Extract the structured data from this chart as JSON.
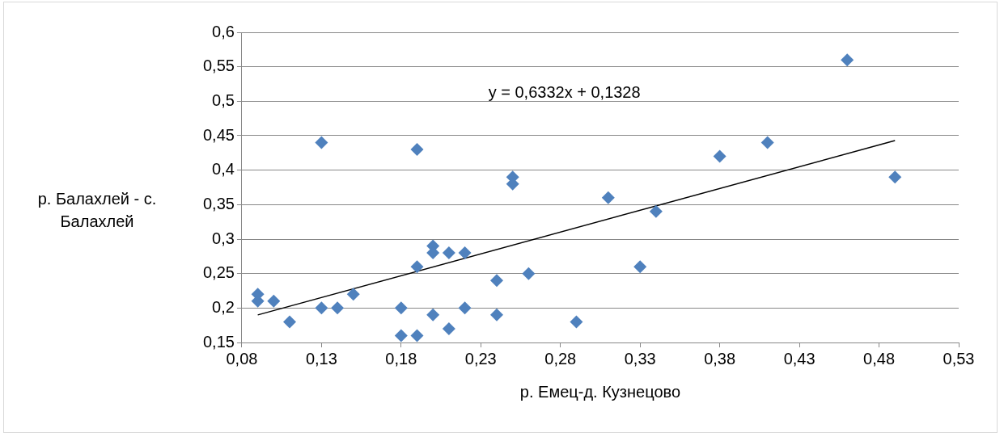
{
  "chart_data": {
    "type": "scatter",
    "xlabel": "р. Емец-д. Кузнецово",
    "ylabel": "р. Балахлей - с. Балахлей",
    "annotations": [
      "y = 0,6332x + 0,1328"
    ],
    "xlim": [
      0.08,
      0.53
    ],
    "xticks": [
      {
        "value": 0.08,
        "label": "0,08"
      },
      {
        "value": 0.13,
        "label": "0,13"
      },
      {
        "value": 0.18,
        "label": "0,18"
      },
      {
        "value": 0.23,
        "label": "0,23"
      },
      {
        "value": 0.28,
        "label": "0,28"
      },
      {
        "value": 0.33,
        "label": "0,33"
      },
      {
        "value": 0.38,
        "label": "0,38"
      },
      {
        "value": 0.43,
        "label": "0,43"
      },
      {
        "value": 0.48,
        "label": "0,48"
      },
      {
        "value": 0.53,
        "label": "0,53"
      }
    ],
    "ylim": [
      0.15,
      0.6
    ],
    "yticks": [
      {
        "value": 0.15,
        "label": "0,15"
      },
      {
        "value": 0.2,
        "label": "0,2"
      },
      {
        "value": 0.25,
        "label": "0,25"
      },
      {
        "value": 0.3,
        "label": "0,3"
      },
      {
        "value": 0.35,
        "label": "0,35"
      },
      {
        "value": 0.4,
        "label": "0,4"
      },
      {
        "value": 0.45,
        "label": "0,45"
      },
      {
        "value": 0.5,
        "label": "0,5"
      },
      {
        "value": 0.55,
        "label": "0,55"
      },
      {
        "value": 0.6,
        "label": "0,6"
      }
    ],
    "grid": "y",
    "legend": false,
    "marker": "diamond",
    "series": [
      {
        "color": "#4f81bd",
        "x": [
          0.09,
          0.09,
          0.1,
          0.11,
          0.13,
          0.13,
          0.14,
          0.15,
          0.18,
          0.18,
          0.19,
          0.19,
          0.19,
          0.2,
          0.2,
          0.2,
          0.21,
          0.21,
          0.22,
          0.22,
          0.24,
          0.24,
          0.25,
          0.25,
          0.26,
          0.29,
          0.31,
          0.33,
          0.34,
          0.38,
          0.41,
          0.46,
          0.49
        ],
        "values": [
          0.21,
          0.22,
          0.21,
          0.18,
          0.44,
          0.2,
          0.2,
          0.22,
          0.2,
          0.16,
          0.43,
          0.26,
          0.16,
          0.29,
          0.28,
          0.19,
          0.28,
          0.17,
          0.28,
          0.2,
          0.24,
          0.19,
          0.39,
          0.38,
          0.25,
          0.18,
          0.36,
          0.26,
          0.34,
          0.42,
          0.44,
          0.56,
          0.39
        ]
      },
      {
        "type": "line",
        "color": "#000000",
        "marker": "none",
        "x": [
          0.09,
          0.49
        ],
        "values": [
          0.19,
          0.443
        ]
      }
    ]
  }
}
